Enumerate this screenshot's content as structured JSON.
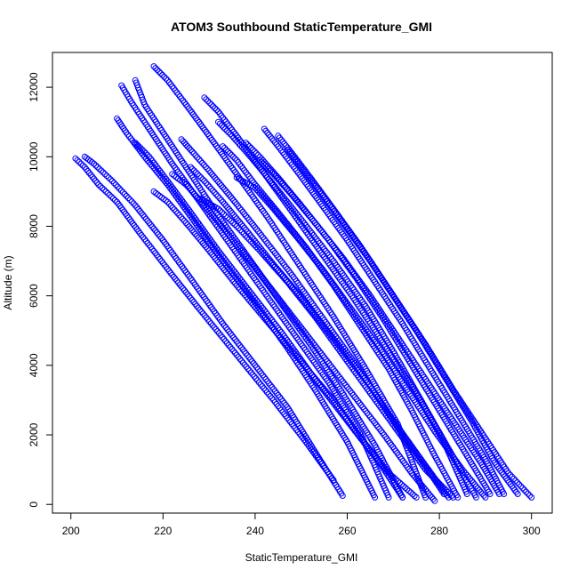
{
  "chart_data": {
    "type": "scatter",
    "title": "ATOM3 Southbound StaticTemperature_GMI",
    "xlabel": "StaticTemperature_GMI",
    "ylabel": "Altitude (m)",
    "xlim": [
      196,
      304.5
    ],
    "ylim": [
      -250,
      13000
    ],
    "x_ticks": [
      200,
      220,
      240,
      260,
      280,
      300
    ],
    "y_ticks": [
      0,
      2000,
      4000,
      6000,
      8000,
      10000,
      12000
    ],
    "x_tick_labels": [
      "200",
      "220",
      "240",
      "260",
      "280",
      "300"
    ],
    "y_tick_labels": [
      "0",
      "2000",
      "4000",
      "6000",
      "8000",
      "10000",
      "12000"
    ],
    "grid": false,
    "legend": "none",
    "marker": "open-circle",
    "point_color": "#0000ff",
    "series": [
      {
        "x": [
          201,
          203,
          206,
          210,
          215,
          222,
          228,
          236,
          244,
          251,
          257
        ],
        "y": [
          9950,
          9700,
          9200,
          8700,
          7800,
          6600,
          5600,
          4300,
          3000,
          1800,
          700
        ]
      },
      {
        "x": [
          203,
          205,
          209,
          214,
          220,
          226,
          233,
          240,
          247,
          254,
          259
        ],
        "y": [
          10000,
          9800,
          9300,
          8600,
          7600,
          6500,
          5200,
          4000,
          2800,
          1300,
          250
        ]
      },
      {
        "x": [
          210,
          212,
          216,
          221,
          227,
          233,
          240,
          247,
          253,
          260,
          266
        ],
        "y": [
          11100,
          10700,
          10000,
          9200,
          8100,
          7000,
          5800,
          4500,
          3300,
          1800,
          200
        ]
      },
      {
        "x": [
          211,
          213,
          217,
          222,
          228,
          235,
          242,
          249,
          256,
          263,
          269
        ],
        "y": [
          12050,
          11600,
          10800,
          9800,
          8700,
          7400,
          6100,
          4800,
          3500,
          2000,
          200
        ]
      },
      {
        "x": [
          214,
          216,
          220,
          225,
          231,
          238,
          245,
          252,
          259,
          266,
          272
        ],
        "y": [
          12200,
          11500,
          10700,
          9700,
          8500,
          7200,
          5900,
          4600,
          3200,
          1700,
          200
        ]
      },
      {
        "x": [
          218,
          221,
          225,
          230,
          236,
          243,
          250,
          257,
          264,
          271,
          277
        ],
        "y": [
          12600,
          12200,
          11500,
          10600,
          9500,
          8200,
          6800,
          5400,
          3900,
          2300,
          200
        ]
      },
      {
        "x": [
          224,
          226,
          230,
          235,
          241,
          248,
          255,
          262,
          269,
          276,
          282
        ],
        "y": [
          10500,
          10200,
          9600,
          8800,
          7800,
          6600,
          5300,
          4000,
          2600,
          1300,
          200
        ]
      },
      {
        "x": [
          229,
          232,
          236,
          241,
          247,
          254,
          261,
          268,
          275,
          281,
          286
        ],
        "y": [
          11700,
          11300,
          10600,
          9700,
          8600,
          7300,
          6000,
          4600,
          3200,
          1800,
          300
        ]
      },
      {
        "x": [
          232,
          235,
          239,
          244,
          250,
          257,
          264,
          270,
          276,
          282,
          288
        ],
        "y": [
          11000,
          10600,
          10000,
          9200,
          8200,
          7000,
          5700,
          4400,
          3000,
          1600,
          200
        ]
      },
      {
        "x": [
          238,
          241,
          245,
          250,
          256,
          262,
          268,
          274,
          280,
          286,
          291
        ],
        "y": [
          10400,
          10000,
          9400,
          8600,
          7600,
          6500,
          5300,
          4000,
          2700,
          1400,
          300
        ]
      },
      {
        "x": [
          222,
          225,
          229,
          234,
          240,
          247,
          254,
          261,
          268,
          274,
          279
        ],
        "y": [
          9500,
          9200,
          8600,
          7800,
          6800,
          5600,
          4400,
          3200,
          2000,
          900,
          100
        ]
      },
      {
        "x": [
          214,
          217,
          221,
          226,
          232,
          239,
          246,
          253,
          260,
          267,
          272
        ],
        "y": [
          10400,
          10000,
          9300,
          8400,
          7300,
          6100,
          4900,
          3600,
          2400,
          1200,
          200
        ]
      },
      {
        "x": [
          242,
          245,
          249,
          254,
          260,
          266,
          272,
          278,
          284,
          290,
          294
        ],
        "y": [
          10800,
          10300,
          9600,
          8700,
          7600,
          6400,
          5200,
          3900,
          2600,
          1300,
          300
        ]
      },
      {
        "x": [
          236,
          240,
          244,
          249,
          255,
          261,
          267,
          273,
          279,
          285,
          290
        ],
        "y": [
          9400,
          9100,
          8500,
          7700,
          6700,
          5600,
          4500,
          3300,
          2100,
          1000,
          200
        ]
      },
      {
        "x": [
          247,
          250,
          254,
          259,
          265,
          271,
          277,
          283,
          289,
          295,
          300
        ],
        "y": [
          10200,
          9700,
          9000,
          8100,
          7000,
          5800,
          4600,
          3300,
          2100,
          900,
          200
        ]
      },
      {
        "x": [
          228,
          232,
          236,
          241,
          247,
          253,
          259,
          265,
          271,
          277,
          283
        ],
        "y": [
          8800,
          8500,
          8000,
          7300,
          6400,
          5400,
          4300,
          3200,
          2100,
          1000,
          200
        ]
      },
      {
        "x": [
          226,
          229,
          233,
          238,
          244,
          251,
          258,
          265,
          271,
          277,
          281
        ],
        "y": [
          9700,
          9300,
          8700,
          7900,
          6900,
          5800,
          4600,
          3400,
          2200,
          1100,
          300
        ]
      },
      {
        "x": [
          245,
          248,
          252,
          257,
          263,
          269,
          275,
          281,
          287,
          292,
          297
        ],
        "y": [
          10600,
          10100,
          9400,
          8500,
          7400,
          6200,
          5000,
          3700,
          2400,
          1200,
          300
        ]
      },
      {
        "x": [
          241,
          244,
          248,
          253,
          259,
          265,
          271,
          277,
          283,
          289,
          293
        ],
        "y": [
          9900,
          9500,
          8900,
          8100,
          7100,
          6000,
          4800,
          3600,
          2400,
          1200,
          300
        ]
      },
      {
        "x": [
          218,
          221,
          225,
          230,
          236,
          243,
          250,
          257,
          263,
          269,
          275
        ],
        "y": [
          9000,
          8700,
          8100,
          7300,
          6300,
          5200,
          4100,
          3000,
          1900,
          900,
          200
        ]
      },
      {
        "x": [
          233,
          236,
          240,
          245,
          251,
          257,
          263,
          269,
          274,
          279,
          284
        ],
        "y": [
          10300,
          9900,
          9200,
          8400,
          7400,
          6300,
          5100,
          3900,
          2700,
          1400,
          200
        ]
      }
    ]
  }
}
